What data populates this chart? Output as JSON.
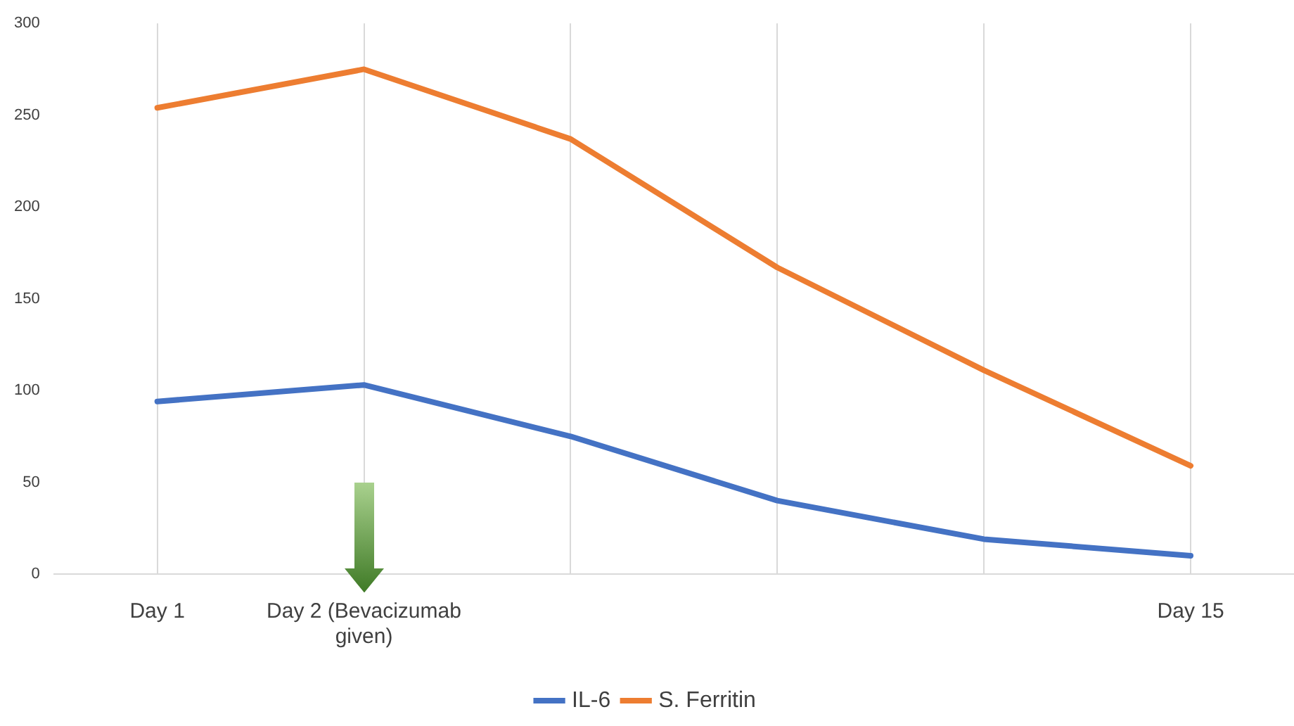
{
  "chart_data": {
    "type": "line",
    "categories": [
      "Day 1",
      "Day 2 (Bevacizumab given)",
      null,
      null,
      null,
      "Day 15"
    ],
    "series": [
      {
        "name": "IL-6",
        "color": "#4472c4",
        "values": [
          94,
          103,
          75,
          40,
          19,
          10
        ]
      },
      {
        "name": "S. Ferritin",
        "color": "#ed7d31",
        "values": [
          254,
          275,
          237,
          167,
          111,
          59
        ]
      }
    ],
    "ylim": [
      0,
      300
    ],
    "yticks": [
      0,
      50,
      100,
      150,
      200,
      250,
      300
    ],
    "grid": "x",
    "legend": "bottom",
    "marker": "none",
    "line_style": "solid"
  }
}
